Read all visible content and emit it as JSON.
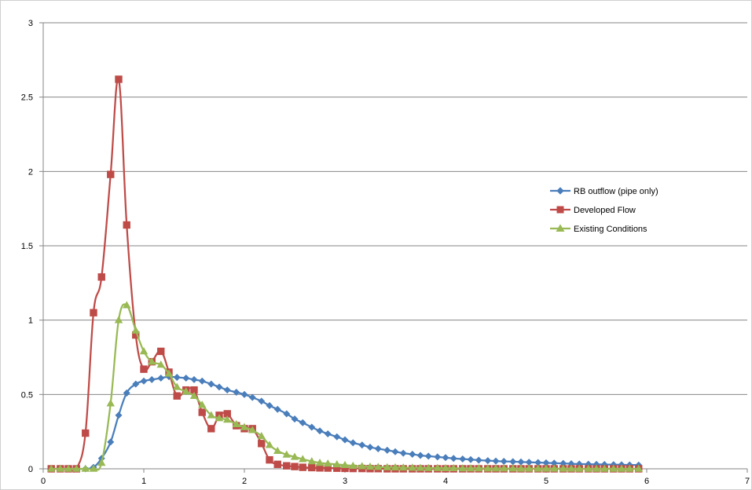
{
  "chart_data": {
    "type": "line",
    "xlim": [
      0,
      7
    ],
    "ylim": [
      0,
      3
    ],
    "x_ticks": [
      0,
      1,
      2,
      3,
      4,
      5,
      6,
      7
    ],
    "y_ticks": [
      0,
      0.5,
      1,
      1.5,
      2,
      2.5,
      3
    ],
    "x_tick_labels": [
      "0",
      "1",
      "2",
      "3",
      "4",
      "5",
      "6",
      "7"
    ],
    "y_tick_labels": [
      "0",
      "0.5",
      "1",
      "1.5",
      "2",
      "2.5",
      "3"
    ],
    "grid": "horizontal",
    "legend_position": "right",
    "series": [
      {
        "name": "RB outflow (pipe only)",
        "color": "#4A7EBB",
        "marker": "diamond",
        "x": [
          0.08,
          0.17,
          0.25,
          0.33,
          0.42,
          0.5,
          0.58,
          0.67,
          0.75,
          0.83,
          0.92,
          1.0,
          1.08,
          1.17,
          1.25,
          1.33,
          1.42,
          1.5,
          1.58,
          1.67,
          1.75,
          1.83,
          1.92,
          2.0,
          2.08,
          2.17,
          2.25,
          2.33,
          2.42,
          2.5,
          2.58,
          2.67,
          2.75,
          2.83,
          2.92,
          3.0,
          3.08,
          3.17,
          3.25,
          3.33,
          3.42,
          3.5,
          3.58,
          3.67,
          3.75,
          3.83,
          3.92,
          4.0,
          4.08,
          4.17,
          4.25,
          4.33,
          4.42,
          4.5,
          4.58,
          4.67,
          4.75,
          4.83,
          4.92,
          5.0,
          5.08,
          5.17,
          5.25,
          5.33,
          5.42,
          5.5,
          5.58,
          5.67,
          5.75,
          5.83,
          5.92
        ],
        "y": [
          0,
          0,
          0,
          0,
          0,
          0.01,
          0.07,
          0.18,
          0.36,
          0.51,
          0.57,
          0.59,
          0.6,
          0.61,
          0.62,
          0.615,
          0.61,
          0.6,
          0.59,
          0.57,
          0.55,
          0.53,
          0.515,
          0.5,
          0.48,
          0.455,
          0.425,
          0.4,
          0.37,
          0.335,
          0.31,
          0.28,
          0.255,
          0.235,
          0.215,
          0.195,
          0.175,
          0.16,
          0.145,
          0.135,
          0.125,
          0.115,
          0.105,
          0.098,
          0.09,
          0.085,
          0.08,
          0.075,
          0.07,
          0.066,
          0.062,
          0.058,
          0.055,
          0.052,
          0.05,
          0.048,
          0.046,
          0.044,
          0.042,
          0.04,
          0.038,
          0.036,
          0.034,
          0.032,
          0.031,
          0.03,
          0.029,
          0.028,
          0.027,
          0.026,
          0.025
        ]
      },
      {
        "name": "Developed Flow",
        "color": "#BE4B48",
        "marker": "square",
        "x": [
          0.08,
          0.17,
          0.25,
          0.33,
          0.42,
          0.5,
          0.58,
          0.67,
          0.75,
          0.83,
          0.92,
          1.0,
          1.08,
          1.17,
          1.25,
          1.33,
          1.42,
          1.5,
          1.58,
          1.67,
          1.75,
          1.83,
          1.92,
          2.0,
          2.08,
          2.17,
          2.25,
          2.33,
          2.42,
          2.5,
          2.58,
          2.67,
          2.75,
          2.83,
          2.92,
          3.0,
          3.08,
          3.17,
          3.25,
          3.33,
          3.42,
          3.5,
          3.58,
          3.67,
          3.75,
          3.83,
          3.92,
          4.0,
          4.08,
          4.17,
          4.25,
          4.33,
          4.42,
          4.5,
          4.58,
          4.67,
          4.75,
          4.83,
          4.92,
          5.0,
          5.08,
          5.17,
          5.25,
          5.33,
          5.42,
          5.5,
          5.58,
          5.67,
          5.75,
          5.83,
          5.92
        ],
        "y": [
          0,
          0,
          0,
          0,
          0.24,
          1.05,
          1.29,
          1.98,
          2.62,
          1.64,
          0.9,
          0.67,
          0.72,
          0.79,
          0.65,
          0.49,
          0.53,
          0.53,
          0.38,
          0.27,
          0.36,
          0.37,
          0.29,
          0.27,
          0.27,
          0.17,
          0.06,
          0.03,
          0.02,
          0.015,
          0.01,
          0.008,
          0.006,
          0.005,
          0.004,
          0.003,
          0.002,
          0.002,
          0.001,
          0.001,
          0,
          0,
          0,
          0,
          0,
          0,
          0,
          0,
          0,
          0,
          0,
          0,
          0,
          0,
          0,
          0,
          0,
          0,
          0,
          0,
          0,
          0,
          0,
          0,
          0,
          0,
          0,
          0,
          0,
          0,
          0
        ]
      },
      {
        "name": "Existing Conditions",
        "color": "#98B954",
        "marker": "triangle",
        "x": [
          0.08,
          0.17,
          0.25,
          0.33,
          0.42,
          0.5,
          0.58,
          0.67,
          0.75,
          0.83,
          0.92,
          1.0,
          1.08,
          1.17,
          1.25,
          1.33,
          1.42,
          1.5,
          1.58,
          1.67,
          1.75,
          1.83,
          1.92,
          2.0,
          2.08,
          2.17,
          2.25,
          2.33,
          2.42,
          2.5,
          2.58,
          2.67,
          2.75,
          2.83,
          2.92,
          3.0,
          3.08,
          3.17,
          3.25,
          3.33,
          3.42,
          3.5,
          3.58,
          3.67,
          3.75,
          3.83,
          3.92,
          4.0,
          4.08,
          4.17,
          4.25,
          4.33,
          4.42,
          4.5,
          4.58,
          4.67,
          4.75,
          4.83,
          4.92,
          5.0,
          5.08,
          5.17,
          5.25,
          5.33,
          5.42,
          5.5,
          5.58,
          5.67,
          5.75,
          5.83,
          5.92
        ],
        "y": [
          0,
          0,
          0,
          0,
          0,
          0,
          0.04,
          0.44,
          1.0,
          1.1,
          0.93,
          0.79,
          0.72,
          0.7,
          0.64,
          0.55,
          0.52,
          0.49,
          0.43,
          0.36,
          0.34,
          0.33,
          0.3,
          0.28,
          0.26,
          0.22,
          0.16,
          0.12,
          0.095,
          0.08,
          0.065,
          0.05,
          0.04,
          0.035,
          0.03,
          0.025,
          0.02,
          0.017,
          0.014,
          0.012,
          0.01,
          0.009,
          0.008,
          0.007,
          0.006,
          0.005,
          0.005,
          0.004,
          0.004,
          0.003,
          0.003,
          0.003,
          0.002,
          0.002,
          0.002,
          0.002,
          0.001,
          0.001,
          0.001,
          0.001,
          0.001,
          0.001,
          0.001,
          0,
          0,
          0,
          0,
          0,
          0,
          0,
          0
        ]
      }
    ]
  }
}
